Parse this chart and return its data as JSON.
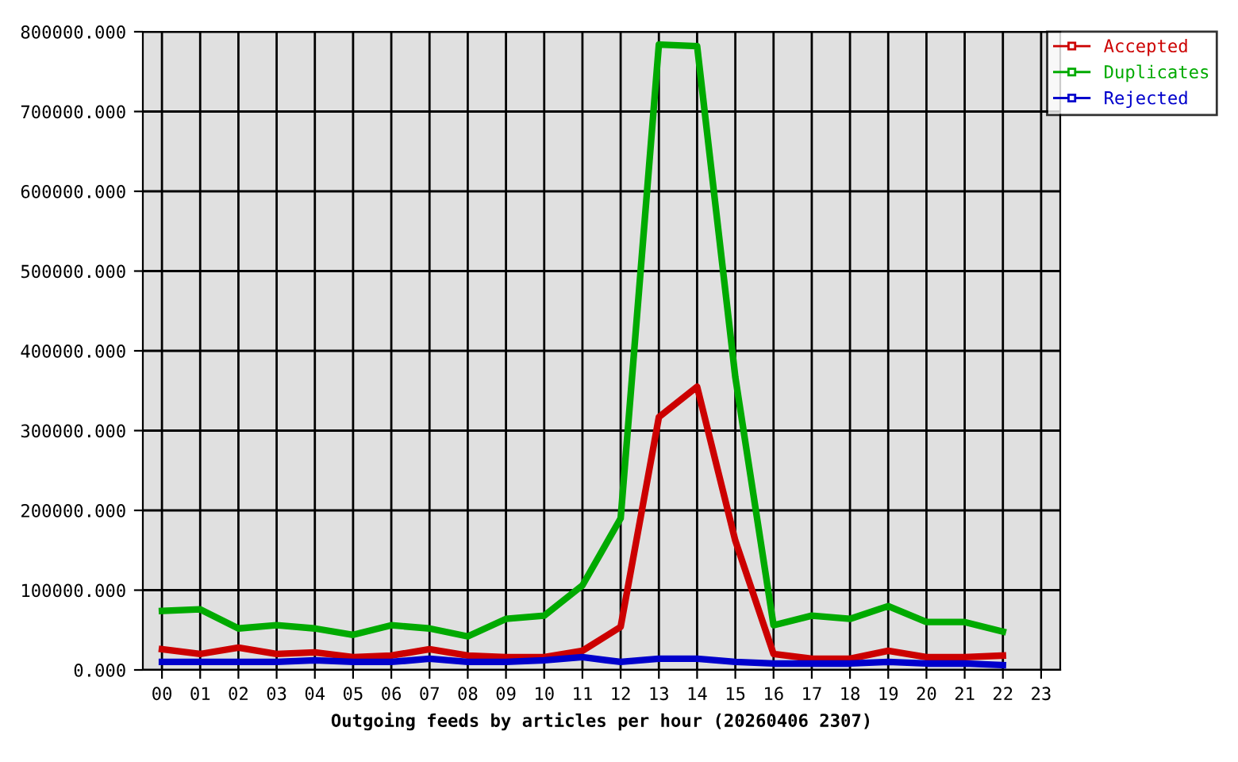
{
  "chart_data": {
    "type": "line",
    "xlabel": "Outgoing feeds by articles per hour (20260406 2307)",
    "categories": [
      "00",
      "01",
      "02",
      "03",
      "04",
      "05",
      "06",
      "07",
      "08",
      "09",
      "10",
      "11",
      "12",
      "13",
      "14",
      "15",
      "16",
      "17",
      "18",
      "19",
      "20",
      "21",
      "22",
      "23"
    ],
    "series": [
      {
        "name": "Accepted",
        "color": "#cc0000",
        "values": [
          26000,
          20000,
          28000,
          20000,
          22000,
          16000,
          18000,
          26000,
          18000,
          16000,
          16000,
          24000,
          54000,
          317000,
          355000,
          162000,
          20000,
          14000,
          14000,
          24000,
          16000,
          16000,
          18000,
          null
        ]
      },
      {
        "name": "Duplicates",
        "color": "#00aa00",
        "values": [
          74000,
          76000,
          52000,
          56000,
          52000,
          44000,
          56000,
          52000,
          42000,
          64000,
          68000,
          106000,
          190000,
          784000,
          782000,
          367000,
          56000,
          68000,
          64000,
          80000,
          60000,
          60000,
          48000,
          null
        ]
      },
      {
        "name": "Rejected",
        "color": "#0000cc",
        "values": [
          10000,
          10000,
          10000,
          10000,
          12000,
          10000,
          10000,
          14000,
          10000,
          10000,
          12000,
          16000,
          10000,
          14000,
          14000,
          10000,
          8000,
          8000,
          8000,
          10000,
          8000,
          8000,
          6000,
          null
        ]
      }
    ],
    "ylim": [
      0,
      800000
    ],
    "yticks": [
      {
        "value": 0,
        "label": "0.000"
      },
      {
        "value": 100000,
        "label": "100000.000"
      },
      {
        "value": 200000,
        "label": "200000.000"
      },
      {
        "value": 300000,
        "label": "300000.000"
      },
      {
        "value": 400000,
        "label": "400000.000"
      },
      {
        "value": 500000,
        "label": "500000.000"
      },
      {
        "value": 600000,
        "label": "600000.000"
      },
      {
        "value": 700000,
        "label": "700000.000"
      },
      {
        "value": 800000,
        "label": "800000.000"
      }
    ],
    "grid": true,
    "legend": "top right",
    "marker": "none",
    "line_style": "solid"
  }
}
